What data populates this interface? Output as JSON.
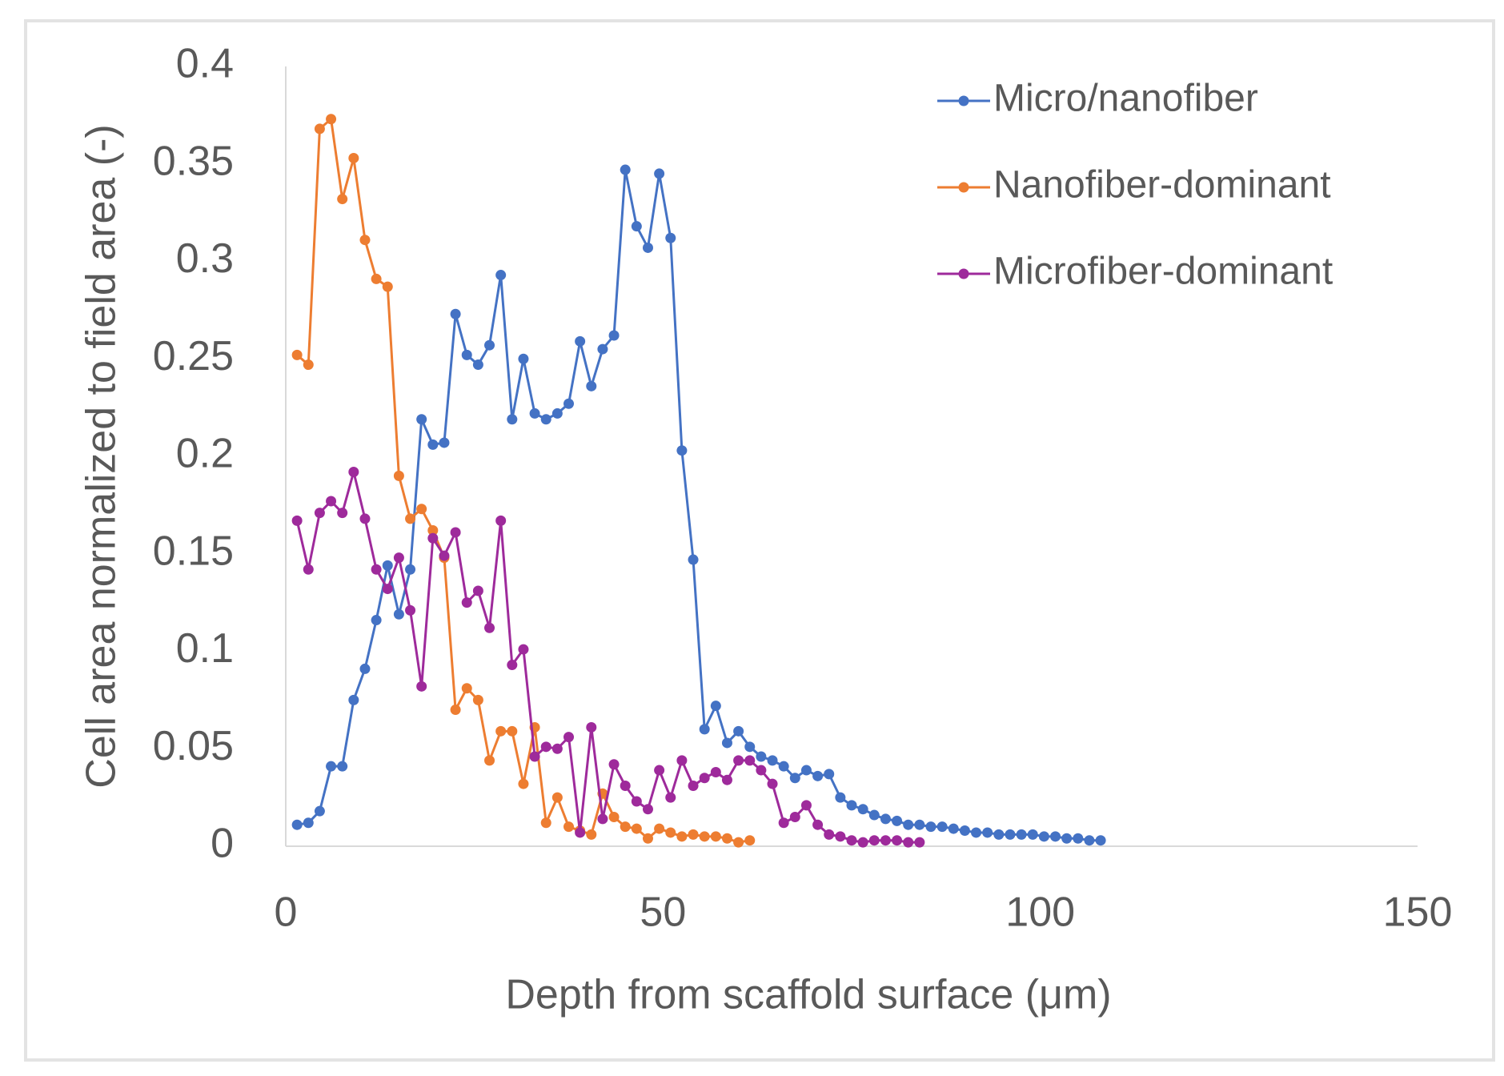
{
  "chart_data": {
    "type": "line",
    "y_label": "Cell area normalized to field area (-)",
    "x_label": "Depth from scaffold surface (μm)",
    "xlim": [
      0,
      150
    ],
    "xticks": [
      0,
      50,
      100,
      150
    ],
    "ylim": [
      0,
      0.4
    ],
    "yticks": [
      0,
      0.05,
      0.1,
      0.15,
      0.2,
      0.25,
      0.3,
      0.35,
      0.4
    ],
    "grid": false,
    "legend": "top-right",
    "x": [
      1.5,
      3,
      4.5,
      6,
      7.5,
      9,
      10.5,
      12,
      13.5,
      15,
      16.5,
      18,
      19.5,
      21,
      22.5,
      24,
      25.5,
      27,
      28.5,
      30,
      31.5,
      33,
      34.5,
      36,
      37.5,
      39,
      40.5,
      42,
      43.5,
      45,
      46.5,
      48,
      49.5,
      51,
      52.5,
      54,
      55.5,
      57,
      58.5,
      60,
      61.5,
      63,
      64.5,
      66,
      67.5,
      69,
      70.5,
      72,
      73.5,
      75,
      76.5,
      78,
      79.5,
      81,
      82.5,
      84,
      85.5,
      87,
      88.5,
      90,
      91.5,
      93,
      94.5,
      96,
      97.5,
      99,
      100.5,
      102,
      103.5,
      105,
      106.5,
      108
    ],
    "series": [
      {
        "name": "Micro/nanofiber",
        "color": "#4472c4",
        "values": [
          0.011,
          0.012,
          0.018,
          0.041,
          0.041,
          0.075,
          0.091,
          0.116,
          0.144,
          0.119,
          0.142,
          0.219,
          0.206,
          0.207,
          0.273,
          0.252,
          0.247,
          0.257,
          0.293,
          0.219,
          0.25,
          0.222,
          0.219,
          0.222,
          0.227,
          0.259,
          0.236,
          0.255,
          0.262,
          0.347,
          0.318,
          0.307,
          0.345,
          0.312,
          0.203,
          0.147,
          0.06,
          0.072,
          0.053,
          0.059,
          0.051,
          0.046,
          0.044,
          0.041,
          0.035,
          0.039,
          0.036,
          0.037,
          0.025,
          0.021,
          0.019,
          0.016,
          0.014,
          0.013,
          0.011,
          0.011,
          0.01,
          0.01,
          0.009,
          0.008,
          0.007,
          0.007,
          0.006,
          0.006,
          0.006,
          0.006,
          0.005,
          0.005,
          0.004,
          0.004,
          0.003,
          0.003
        ]
      },
      {
        "name": "Nanofiber-dominant",
        "color": "#ed7d31",
        "values": [
          0.252,
          0.247,
          0.368,
          0.373,
          0.332,
          0.353,
          0.311,
          0.291,
          0.287,
          0.19,
          0.168,
          0.173,
          0.162,
          0.148,
          0.07,
          0.081,
          0.075,
          0.044,
          0.059,
          0.059,
          0.032,
          0.061,
          0.012,
          0.025,
          0.01,
          0.008,
          0.006,
          0.027,
          0.015,
          0.01,
          0.009,
          0.004,
          0.009,
          0.007,
          0.005,
          0.006,
          0.005,
          0.005,
          0.004,
          0.002,
          0.003,
          null,
          null,
          null,
          null,
          null,
          null,
          null,
          null,
          null,
          null,
          null,
          null,
          null,
          null,
          null,
          null,
          null,
          null,
          null,
          null,
          null,
          null,
          null,
          null,
          null,
          null,
          null,
          null,
          null,
          null,
          null
        ]
      },
      {
        "name": "Microfiber-dominant",
        "color": "#9e2a9b",
        "values": [
          0.167,
          0.142,
          0.171,
          0.177,
          0.171,
          0.192,
          0.168,
          0.142,
          0.132,
          0.148,
          0.121,
          0.082,
          0.158,
          0.149,
          0.161,
          0.125,
          0.131,
          0.112,
          0.167,
          0.093,
          0.101,
          0.046,
          0.051,
          0.05,
          0.056,
          0.007,
          0.061,
          0.014,
          0.042,
          0.031,
          0.023,
          0.019,
          0.039,
          0.025,
          0.044,
          0.031,
          0.035,
          0.038,
          0.034,
          0.044,
          0.044,
          0.039,
          0.032,
          0.012,
          0.015,
          0.021,
          0.011,
          0.006,
          0.005,
          0.003,
          0.002,
          0.003,
          0.003,
          0.003,
          0.002,
          0.002,
          null,
          null,
          null,
          null,
          null,
          null,
          null,
          null,
          null,
          null,
          null,
          null,
          null,
          null,
          null,
          null
        ]
      }
    ]
  }
}
